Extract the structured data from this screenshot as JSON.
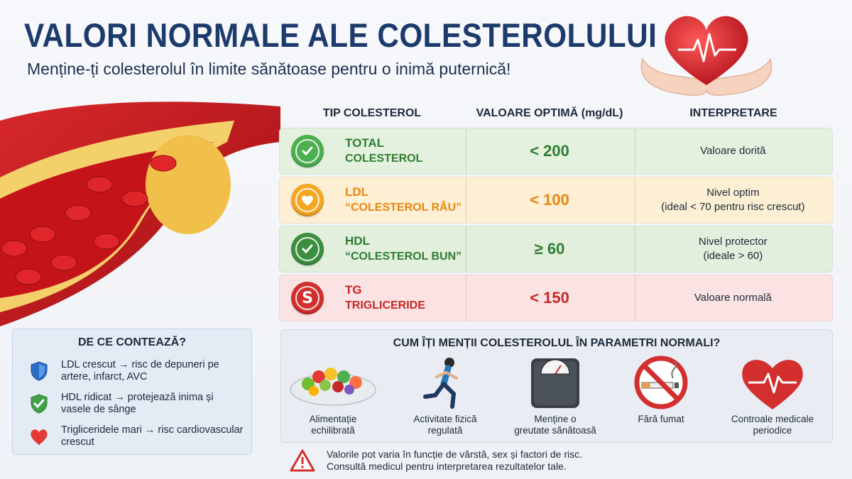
{
  "header": {
    "title": "VALORI NORMALE ALE COLESTEROLULUI",
    "subtitle": "Menține-ți colesterolul în limite sănătoase pentru o inimă puternică!"
  },
  "table": {
    "headers": [
      "TIP COLESTEROL",
      "VALOARE OPTIMĂ (mg/dL)",
      "INTERPRETARE"
    ],
    "rows": [
      {
        "icon": "check-icon",
        "name": "TOTAL",
        "sub": "COLESTEROL",
        "value": "< 200",
        "interp1": "Valoare dorită",
        "interp2": "",
        "color": "#2f7d32",
        "row_bg": "#e4f1df"
      },
      {
        "icon": "heart-icon",
        "name": "LDL",
        "sub": "“COLESTEROL RĂU”",
        "value": "< 100",
        "interp1": "Nivel optim",
        "interp2": "(ideal < 70 pentru risc crescut)",
        "color": "#e8860f",
        "row_bg": "#fcefd4"
      },
      {
        "icon": "check-icon",
        "name": "HDL",
        "sub": "“COLESTEROL BUN”",
        "value": "≥ 60",
        "interp1": "Nivel protector",
        "interp2": "(ideale > 60)",
        "color": "#2f7d32",
        "row_bg": "#e1efdc"
      },
      {
        "icon": "s-icon",
        "name": "TG",
        "sub": "TRIGLICERIDE",
        "value": "< 150",
        "interp1": "Valoare normală",
        "interp2": "",
        "color": "#c62828",
        "row_bg": "#fbe3e3"
      }
    ]
  },
  "why": {
    "title": "DE CE CONTEAZĂ?",
    "items": [
      {
        "icon": "shield-icon",
        "text": "LDL crescut → risc de depuneri pe artere, infarct, AVC"
      },
      {
        "icon": "shield-check-icon",
        "text": "HDL ridicat → protejează inima și vasele de sânge"
      },
      {
        "icon": "heart-icon",
        "text": "Trigliceridele mari → risc cardiovascular crescut"
      }
    ]
  },
  "keep": {
    "title": "CUM ÎȚI MENȚII COLESTEROLUL ÎN PARAMETRI NORMALI?",
    "tips": [
      {
        "icon": "salad-bowl-icon",
        "label1": "Alimentație",
        "label2": "echilibrată"
      },
      {
        "icon": "runner-icon",
        "label1": "Activitate fizică",
        "label2": "regulată"
      },
      {
        "icon": "scale-icon",
        "label1": "Menține o",
        "label2": "greutate sănătoasă"
      },
      {
        "icon": "no-smoking-icon",
        "label1": "Fără fumat",
        "label2": ""
      },
      {
        "icon": "heartbeat-icon",
        "label1": "Controale medicale",
        "label2": "periodice"
      }
    ]
  },
  "warning": {
    "icon": "warning-icon",
    "line1": "Valorile pot varia în funcție de vârstă, sex și factori de risc.",
    "line2": "Consultă medicul pentru interpretarea rezultatelor tale."
  },
  "colors": {
    "title": "#1c3a6b",
    "green": "#2f7d32",
    "orange": "#e8860f",
    "red": "#c62828"
  }
}
